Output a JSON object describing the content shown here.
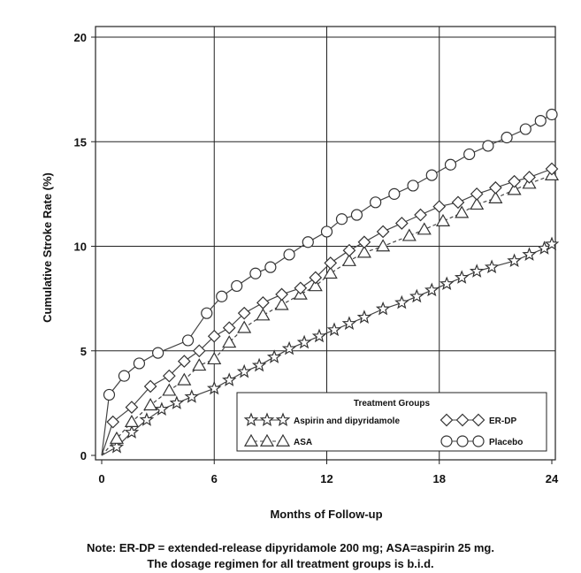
{
  "chart_data": {
    "type": "line",
    "title": "",
    "xlabel": "Months of Follow-up",
    "ylabel": "Cumulative Stroke Rate (%)",
    "xlim": [
      0,
      24
    ],
    "ylim": [
      0,
      20
    ],
    "x_ticks": [
      "0",
      "6",
      "12",
      "18",
      "24"
    ],
    "y_ticks": [
      "0",
      "5",
      "10",
      "15",
      "20"
    ],
    "grid": true,
    "legend_title": "Treatment Groups",
    "legend_position": "bottom-right",
    "series": [
      {
        "name": "Aspirin and dipyridamole",
        "marker": "star",
        "x": [
          0,
          0.8,
          1.6,
          2.4,
          3.2,
          4.0,
          4.8,
          6.0,
          6.8,
          7.6,
          8.4,
          9.2,
          10.0,
          10.8,
          11.6,
          12.4,
          13.2,
          14.0,
          15.0,
          16.0,
          16.8,
          17.6,
          18.4,
          19.2,
          20.0,
          20.8,
          22.0,
          22.8,
          23.6,
          24.0
        ],
        "y": [
          0,
          0.4,
          1.1,
          1.7,
          2.2,
          2.5,
          2.8,
          3.2,
          3.6,
          4.0,
          4.3,
          4.7,
          5.1,
          5.4,
          5.7,
          6.0,
          6.3,
          6.6,
          7.0,
          7.3,
          7.6,
          7.9,
          8.2,
          8.5,
          8.8,
          9.0,
          9.3,
          9.6,
          9.9,
          10.1
        ]
      },
      {
        "name": "ASA",
        "marker": "triangle",
        "x": [
          0,
          0.8,
          1.6,
          2.6,
          3.6,
          4.4,
          5.2,
          6.0,
          6.8,
          7.6,
          8.6,
          9.6,
          10.6,
          11.4,
          12.2,
          13.2,
          14.0,
          15.0,
          16.4,
          17.2,
          18.2,
          19.2,
          20.0,
          21.0,
          22.0,
          22.8,
          24.0
        ],
        "y": [
          0,
          0.8,
          1.6,
          2.4,
          3.1,
          3.6,
          4.3,
          4.6,
          5.4,
          6.1,
          6.7,
          7.2,
          7.7,
          8.1,
          8.7,
          9.3,
          9.7,
          10.0,
          10.5,
          10.8,
          11.2,
          11.6,
          12.0,
          12.3,
          12.7,
          13.0,
          13.4
        ]
      },
      {
        "name": "ER-DP",
        "marker": "diamond",
        "x": [
          0,
          0.6,
          1.6,
          2.6,
          3.6,
          4.4,
          5.2,
          6.0,
          6.8,
          7.6,
          8.6,
          9.6,
          10.6,
          11.4,
          12.2,
          13.2,
          14.0,
          15.0,
          16.0,
          17.0,
          18.0,
          19.0,
          20.0,
          21.0,
          22.0,
          22.8,
          24.0
        ],
        "y": [
          0,
          1.6,
          2.3,
          3.3,
          3.8,
          4.5,
          5.0,
          5.7,
          6.1,
          6.8,
          7.3,
          7.7,
          8.0,
          8.5,
          9.2,
          9.8,
          10.2,
          10.7,
          11.1,
          11.5,
          11.9,
          12.1,
          12.5,
          12.8,
          13.1,
          13.3,
          13.7
        ]
      },
      {
        "name": "Placebo",
        "marker": "circle",
        "x": [
          0,
          0.4,
          1.2,
          2.0,
          3.0,
          4.6,
          5.6,
          6.4,
          7.2,
          8.2,
          9.0,
          10.0,
          11.0,
          12.0,
          12.8,
          13.6,
          14.6,
          15.6,
          16.6,
          17.6,
          18.6,
          19.6,
          20.6,
          21.6,
          22.6,
          23.4,
          24.0
        ],
        "y": [
          0,
          2.9,
          3.8,
          4.4,
          4.9,
          5.5,
          6.8,
          7.6,
          8.1,
          8.7,
          9.0,
          9.6,
          10.2,
          10.7,
          11.3,
          11.5,
          12.1,
          12.5,
          12.9,
          13.4,
          13.9,
          14.4,
          14.8,
          15.2,
          15.6,
          16.0,
          16.3
        ]
      }
    ]
  },
  "note": {
    "line1": "Note: ER-DP = extended-release dipyridamole 200 mg; ASA=aspirin 25 mg.",
    "line2": "The dosage regimen for all treatment groups is b.i.d."
  }
}
